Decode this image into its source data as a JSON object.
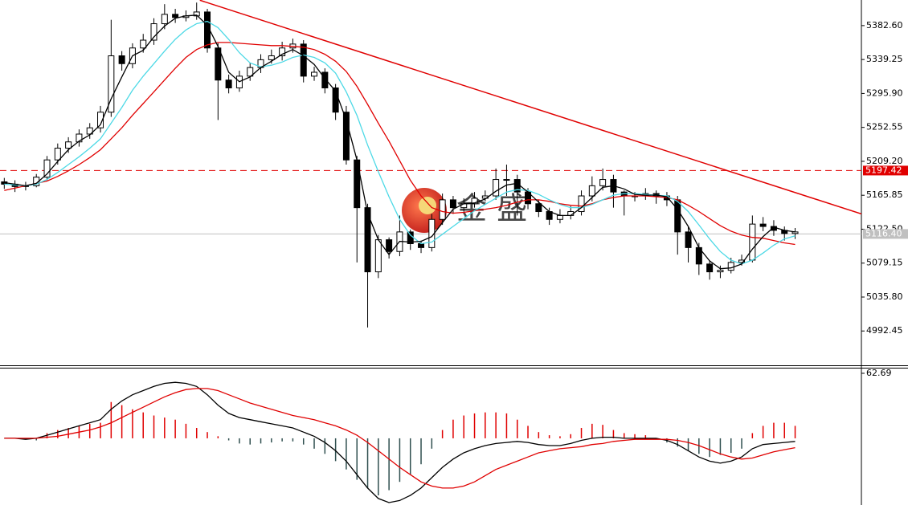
{
  "chart_data": [
    {
      "type": "candlestick",
      "watermark": "金 盛",
      "xlim": [
        -0.4,
        80.2
      ],
      "ylim": [
        4948.6,
        5415.3
      ],
      "yticks": [
        {
          "value": 5382.6,
          "label": "5382.60"
        },
        5339.25,
        {
          "value": 5295.9,
          "label": "5295.90"
        },
        5252.55,
        {
          "value": 5209.2,
          "label": "5209.20"
        },
        5165.85,
        {
          "value": 5122.5,
          "label": "5122.50"
        },
        5079.15,
        {
          "value": 5035.8,
          "label": "5035.80"
        },
        4992.45
      ],
      "open": [
        5183,
        5180,
        5177,
        5178,
        5189,
        5211,
        5226,
        5234,
        5244,
        5252,
        5272,
        5344,
        5334,
        5354,
        5364,
        5385,
        5397,
        5393,
        5395,
        5400,
        5354,
        5313,
        5303,
        5318,
        5329,
        5339,
        5344,
        5354,
        5359,
        5318,
        5323,
        5303,
        5272,
        5211,
        5150,
        5068,
        5109,
        5094,
        5119,
        5104,
        5099,
        5135,
        5160,
        5150,
        5155,
        5162,
        5165,
        5186,
        5186,
        5170,
        5155,
        5145,
        5135,
        5140,
        5145,
        5165,
        5178,
        5186,
        5170,
        5165,
        5165,
        5168,
        5165,
        5160,
        5119,
        5099,
        5078,
        5068,
        5070,
        5080,
        5083,
        5129,
        5126,
        5121,
        5117
      ],
      "high": [
        5188,
        5185,
        5183,
        5193,
        5216,
        5232,
        5240,
        5250,
        5258,
        5280,
        5390,
        5350,
        5360,
        5372,
        5392,
        5410,
        5404,
        5402,
        5412,
        5404,
        5360,
        5320,
        5325,
        5335,
        5346,
        5352,
        5362,
        5366,
        5364,
        5330,
        5328,
        5308,
        5280,
        5216,
        5155,
        5115,
        5112,
        5140,
        5122,
        5108,
        5142,
        5168,
        5165,
        5162,
        5170,
        5172,
        5200,
        5205,
        5192,
        5175,
        5160,
        5150,
        5148,
        5152,
        5172,
        5190,
        5200,
        5192,
        5172,
        5170,
        5175,
        5172,
        5170,
        5165,
        5125,
        5105,
        5082,
        5076,
        5086,
        5090,
        5140,
        5138,
        5134,
        5126,
        5124
      ],
      "low": [
        5174,
        5170,
        5172,
        5176,
        5185,
        5205,
        5220,
        5228,
        5238,
        5246,
        5266,
        5325,
        5328,
        5348,
        5358,
        5378,
        5386,
        5388,
        5390,
        5348,
        5262,
        5296,
        5298,
        5312,
        5322,
        5334,
        5338,
        5348,
        5310,
        5312,
        5296,
        5262,
        5205,
        5080,
        4997,
        5060,
        5085,
        5088,
        5096,
        5092,
        5094,
        5128,
        5142,
        5145,
        5150,
        5158,
        5160,
        5165,
        5140,
        5148,
        5138,
        5128,
        5130,
        5135,
        5140,
        5158,
        5172,
        5150,
        5140,
        5158,
        5160,
        5155,
        5152,
        5090,
        5080,
        5064,
        5058,
        5060,
        5066,
        5076,
        5080,
        5120,
        5114,
        5108,
        5110
      ],
      "close": [
        5180,
        5177,
        5178,
        5189,
        5211,
        5226,
        5234,
        5244,
        5252,
        5272,
        5344,
        5334,
        5354,
        5364,
        5385,
        5397,
        5393,
        5395,
        5400,
        5354,
        5313,
        5303,
        5318,
        5329,
        5339,
        5344,
        5354,
        5359,
        5318,
        5323,
        5303,
        5272,
        5211,
        5150,
        5068,
        5109,
        5094,
        5119,
        5104,
        5099,
        5135,
        5160,
        5150,
        5155,
        5162,
        5165,
        5186,
        5186,
        5170,
        5155,
        5145,
        5135,
        5140,
        5145,
        5165,
        5178,
        5186,
        5170,
        5165,
        5165,
        5168,
        5165,
        5160,
        5119,
        5099,
        5078,
        5068,
        5070,
        5080,
        5083,
        5129,
        5126,
        5121,
        5117,
        5119
      ],
      "series": [
        {
          "color": "#e00000",
          "values": [
            5172,
            5175,
            5178,
            5181,
            5184,
            5190,
            5197,
            5205,
            5214,
            5224,
            5238,
            5252,
            5268,
            5283,
            5298,
            5313,
            5328,
            5342,
            5352,
            5358,
            5361,
            5361,
            5360,
            5359,
            5358,
            5357,
            5357,
            5356,
            5355,
            5352,
            5346,
            5337,
            5324,
            5305,
            5282,
            5258,
            5235,
            5210,
            5185,
            5165,
            5150,
            5145,
            5143,
            5144,
            5146,
            5148,
            5150,
            5153,
            5157,
            5160,
            5160,
            5158,
            5155,
            5153,
            5152,
            5155,
            5160,
            5163,
            5165,
            5165,
            5165,
            5164,
            5163,
            5160,
            5153,
            5145,
            5136,
            5127,
            5120,
            5115,
            5112,
            5111,
            5108,
            5105,
            5103
          ]
        },
        {
          "color": "#4dd9e6",
          "values": [
            5180,
            5179,
            5178,
            5180,
            5186,
            5195,
            5205,
            5215,
            5226,
            5238,
            5258,
            5278,
            5300,
            5318,
            5334,
            5350,
            5365,
            5377,
            5385,
            5388,
            5380,
            5365,
            5348,
            5335,
            5330,
            5332,
            5336,
            5342,
            5345,
            5342,
            5335,
            5322,
            5298,
            5268,
            5230,
            5196,
            5164,
            5135,
            5115,
            5104,
            5106,
            5116,
            5126,
            5136,
            5146,
            5154,
            5162,
            5170,
            5173,
            5172,
            5167,
            5160,
            5154,
            5150,
            5150,
            5154,
            5160,
            5166,
            5168,
            5168,
            5167,
            5166,
            5165,
            5158,
            5145,
            5128,
            5110,
            5094,
            5083,
            5078,
            5083,
            5092,
            5102,
            5110,
            5114
          ]
        },
        {
          "color": "#000000",
          "values": [
            5182,
            5180,
            5178,
            5181,
            5193,
            5209,
            5224,
            5235,
            5243,
            5256,
            5289,
            5317,
            5344,
            5351,
            5368,
            5382,
            5392,
            5395,
            5396,
            5383,
            5356,
            5323,
            5311,
            5317,
            5329,
            5337,
            5346,
            5352,
            5344,
            5333,
            5315,
            5299,
            5262,
            5211,
            5143,
            5109,
            5090,
            5107,
            5106,
            5107,
            5113,
            5131,
            5148,
            5155,
            5156,
            5161,
            5171,
            5179,
            5181,
            5170,
            5157,
            5145,
            5140,
            5140,
            5150,
            5163,
            5176,
            5178,
            5174,
            5167,
            5166,
            5166,
            5164,
            5148,
            5126,
            5099,
            5082,
            5072,
            5073,
            5078,
            5097,
            5113,
            5125,
            5121,
            5119
          ]
        }
      ],
      "trendline": {
        "x": [
          18.3,
          80.2
        ],
        "values": [
          5415,
          5142
        ],
        "color": "#e00000"
      },
      "hlines": [
        {
          "value": 5197.42,
          "color": "#e00000",
          "style": "dashed"
        },
        {
          "value": 5116.4,
          "label": "5116.40",
          "color": "#c0c0c0",
          "style": "solid"
        }
      ]
    },
    {
      "type": "macd",
      "ylim": [
        -64.3,
        67.3
      ],
      "yticks": [
        62.69
      ],
      "histogram": [
        0,
        0,
        -1,
        -2,
        5,
        8,
        10,
        12,
        14,
        15,
        35,
        32,
        28,
        25,
        22,
        20,
        18,
        14,
        10,
        6,
        2,
        -2,
        -5,
        -6,
        -5,
        -4,
        -3,
        -3,
        -6,
        -10,
        -15,
        -22,
        -30,
        -40,
        -48,
        -55,
        -50,
        -42,
        -35,
        -25,
        -10,
        8,
        18,
        22,
        24,
        25,
        25,
        24,
        18,
        12,
        6,
        3,
        2,
        4,
        10,
        14,
        13,
        8,
        5,
        4,
        3,
        0,
        -4,
        -8,
        -12,
        -15,
        -18,
        -16,
        -14,
        -10,
        5,
        12,
        15,
        15,
        12
      ],
      "positive_color": "#e00000",
      "negative_color": "#2f4f4f",
      "series": [
        {
          "color": "#000000",
          "values": [
            0,
            0,
            -1,
            0,
            3,
            6,
            9,
            12,
            15,
            18,
            28,
            36,
            42,
            46,
            50,
            53,
            54,
            53,
            50,
            42,
            32,
            24,
            20,
            18,
            16,
            14,
            12,
            10,
            6,
            2,
            -4,
            -12,
            -22,
            -35,
            -48,
            -58,
            -62,
            -60,
            -55,
            -48,
            -38,
            -28,
            -20,
            -14,
            -10,
            -7,
            -5,
            -4,
            -3,
            -4,
            -6,
            -7,
            -7,
            -5,
            -2,
            0,
            1,
            1,
            0,
            0,
            0,
            0,
            -2,
            -6,
            -12,
            -18,
            -22,
            -24,
            -22,
            -18,
            -10,
            -6,
            -5,
            -4,
            -3
          ]
        },
        {
          "color": "#e00000",
          "values": [
            0,
            0,
            0,
            0,
            1,
            2,
            4,
            6,
            8,
            11,
            15,
            20,
            25,
            30,
            35,
            40,
            44,
            47,
            48,
            48,
            46,
            42,
            38,
            34,
            31,
            28,
            25,
            22,
            20,
            18,
            15,
            12,
            8,
            3,
            -4,
            -12,
            -20,
            -28,
            -35,
            -42,
            -46,
            -48,
            -48,
            -46,
            -42,
            -36,
            -30,
            -26,
            -22,
            -18,
            -14,
            -12,
            -10,
            -9,
            -8,
            -6,
            -5,
            -3,
            -2,
            -1,
            -1,
            -1,
            -1,
            -2,
            -4,
            -7,
            -11,
            -15,
            -18,
            -20,
            -19,
            -16,
            -13,
            -11,
            -9
          ]
        }
      ]
    }
  ]
}
